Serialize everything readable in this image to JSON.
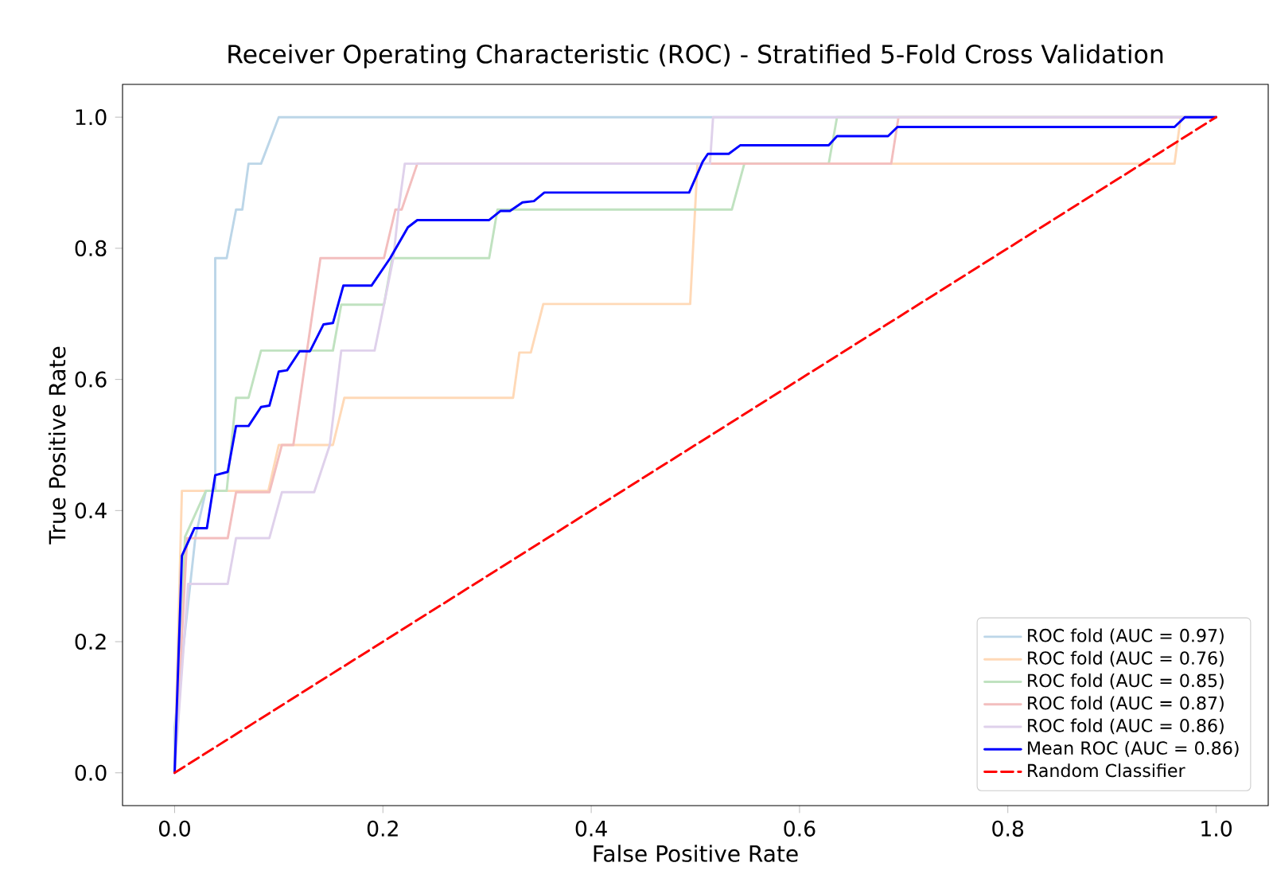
{
  "chart_data": {
    "type": "line",
    "title": "Receiver Operating Characteristic (ROC) - Stratified 5-Fold Cross Validation",
    "xlabel": "False Positive Rate",
    "ylabel": "True Positive Rate",
    "xlim": [
      -0.05,
      1.05
    ],
    "ylim": [
      -0.05,
      1.05
    ],
    "xticks": [
      {
        "value": 0,
        "label": "0.0"
      },
      0.2,
      0.4,
      0.6,
      0.8,
      {
        "value": 1,
        "label": "1.0"
      }
    ],
    "yticks": [
      {
        "value": 0,
        "label": "0.0"
      },
      0.2,
      0.4,
      0.6,
      0.8,
      {
        "value": 1,
        "label": "1.0"
      }
    ],
    "grid": false,
    "legend": "bottom right",
    "marker": "none",
    "series": [
      {
        "name": "ROC fold (AUC = 0.97)",
        "color": "#bcd6e8",
        "line_style": "solid",
        "x": [
          0,
          0.0,
          0.02,
          0.03,
          0.039,
          0.039,
          0.05,
          0.059,
          0.065,
          0.071,
          0.083,
          0.1,
          1
        ],
        "values": [
          0,
          0.07,
          0.36,
          0.43,
          0.43,
          0.785,
          0.785,
          0.859,
          0.859,
          0.929,
          0.929,
          1.0,
          1.0
        ]
      },
      {
        "name": "ROC fold (AUC = 0.76)",
        "color": "#ffd9b7",
        "line_style": "solid",
        "x": [
          0,
          0.007,
          0.09,
          0.1,
          0.152,
          0.163,
          0.325,
          0.331,
          0.342,
          0.354,
          0.495,
          0.502,
          0.96,
          0.966,
          1
        ],
        "values": [
          0,
          0.43,
          0.43,
          0.5,
          0.5,
          0.572,
          0.572,
          0.641,
          0.641,
          0.715,
          0.715,
          0.929,
          0.929,
          1.0,
          1.0
        ]
      },
      {
        "name": "ROC fold (AUC = 0.85)",
        "color": "#c0e2c0",
        "line_style": "solid",
        "x": [
          0,
          0.01,
          0.03,
          0.05,
          0.059,
          0.071,
          0.083,
          0.152,
          0.16,
          0.201,
          0.209,
          0.302,
          0.31,
          0.535,
          0.547,
          0.628,
          0.636,
          1
        ],
        "values": [
          0,
          0.36,
          0.43,
          0.43,
          0.572,
          0.572,
          0.644,
          0.644,
          0.714,
          0.714,
          0.785,
          0.785,
          0.859,
          0.859,
          0.929,
          0.929,
          1.0,
          1.0
        ]
      },
      {
        "name": "ROC fold (AUC = 0.87)",
        "color": "#f3bebe",
        "line_style": "solid",
        "x": [
          0,
          0.012,
          0.051,
          0.059,
          0.091,
          0.103,
          0.114,
          0.14,
          0.201,
          0.212,
          0.218,
          0.233,
          0.688,
          0.695,
          1
        ],
        "values": [
          0,
          0.358,
          0.358,
          0.428,
          0.428,
          0.5,
          0.5,
          0.785,
          0.785,
          0.859,
          0.859,
          0.929,
          0.929,
          1.0,
          1.0
        ]
      },
      {
        "name": "ROC fold (AUC = 0.86)",
        "color": "#dfd1eb",
        "line_style": "solid",
        "x": [
          0,
          0.013,
          0.051,
          0.059,
          0.091,
          0.103,
          0.134,
          0.149,
          0.16,
          0.192,
          0.201,
          0.21,
          0.215,
          0.221,
          0.514,
          0.517,
          1
        ],
        "values": [
          0,
          0.288,
          0.288,
          0.358,
          0.358,
          0.428,
          0.428,
          0.5,
          0.644,
          0.644,
          0.714,
          0.785,
          0.859,
          0.929,
          0.929,
          1.0,
          1.0
        ]
      },
      {
        "name": "Mean ROC (AUC = 0.86)",
        "color": "#0000ff",
        "line_style": "solid",
        "x": [
          0,
          0.007,
          0.019,
          0.031,
          0.039,
          0.051,
          0.059,
          0.071,
          0.083,
          0.091,
          0.1,
          0.108,
          0.12,
          0.13,
          0.143,
          0.152,
          0.162,
          0.189,
          0.207,
          0.224,
          0.233,
          0.302,
          0.313,
          0.322,
          0.334,
          0.345,
          0.355,
          0.494,
          0.507,
          0.512,
          0.532,
          0.543,
          0.628,
          0.636,
          0.685,
          0.694,
          0.96,
          0.97,
          1
        ],
        "values": [
          0,
          0.331,
          0.373,
          0.373,
          0.454,
          0.459,
          0.529,
          0.529,
          0.558,
          0.56,
          0.612,
          0.614,
          0.643,
          0.643,
          0.684,
          0.686,
          0.743,
          0.743,
          0.785,
          0.832,
          0.843,
          0.843,
          0.857,
          0.857,
          0.87,
          0.872,
          0.885,
          0.885,
          0.932,
          0.944,
          0.944,
          0.957,
          0.957,
          0.971,
          0.971,
          0.985,
          0.985,
          1.0,
          1.0
        ]
      },
      {
        "name": "Random Classifier",
        "color": "#ff0000",
        "line_style": "dashed",
        "x": [
          0,
          1
        ],
        "values": [
          0,
          1
        ]
      }
    ]
  }
}
